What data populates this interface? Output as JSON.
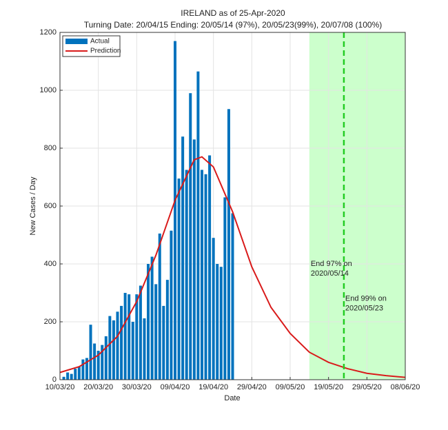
{
  "chart_data": {
    "type": "bar",
    "title": "IRELAND as of 25-Apr-2020",
    "subtitle": "Turning Date: 20/04/15  Ending: 20/05/14 (97%), 20/05/23(99%), 20/07/08 (100%)",
    "x_label": "Date",
    "y_label": "New Cases / Day",
    "xlim": [
      "2020-03-10",
      "2020-06-08"
    ],
    "xticks": [
      {
        "value": "2020-03-10",
        "label": "10/03/20"
      },
      {
        "value": "2020-03-20",
        "label": "20/03/20"
      },
      {
        "value": "2020-03-30",
        "label": "30/03/20"
      },
      {
        "value": "2020-04-09",
        "label": "09/04/20"
      },
      {
        "value": "2020-04-19",
        "label": "19/04/20"
      },
      {
        "value": "2020-04-29",
        "label": "29/04/20"
      },
      {
        "value": "2020-05-09",
        "label": "09/05/20"
      },
      {
        "value": "2020-05-19",
        "label": "19/05/20"
      },
      {
        "value": "2020-05-29",
        "label": "29/05/20"
      },
      {
        "value": "2020-06-08",
        "label": "08/06/20"
      }
    ],
    "ylim": [
      0,
      1200
    ],
    "yticks": [
      0,
      200,
      400,
      600,
      800,
      1000,
      1200
    ],
    "grid": true,
    "legend": "northwest",
    "shaded_x": [
      "2020-05-14",
      "2020-06-08"
    ],
    "shade_color": "#ccffcc",
    "vline_x": "2020-05-23",
    "vline_color": "#22cc22",
    "annotations": [
      {
        "text": [
          "End 97% on",
          "2020/05/14"
        ],
        "x": "2020-05-14",
        "y": 400
      },
      {
        "text": [
          "End 99% on",
          "2020/05/23"
        ],
        "x": "2020-05-23",
        "y": 280
      }
    ],
    "series": [
      {
        "name": "Actual",
        "type": "bar",
        "color": "#0072bd",
        "x": [
          "2020-03-11",
          "2020-03-12",
          "2020-03-13",
          "2020-03-14",
          "2020-03-15",
          "2020-03-16",
          "2020-03-17",
          "2020-03-18",
          "2020-03-19",
          "2020-03-20",
          "2020-03-21",
          "2020-03-22",
          "2020-03-23",
          "2020-03-24",
          "2020-03-25",
          "2020-03-26",
          "2020-03-27",
          "2020-03-28",
          "2020-03-29",
          "2020-03-30",
          "2020-03-31",
          "2020-04-01",
          "2020-04-02",
          "2020-04-03",
          "2020-04-04",
          "2020-04-05",
          "2020-04-06",
          "2020-04-07",
          "2020-04-08",
          "2020-04-09",
          "2020-04-10",
          "2020-04-11",
          "2020-04-12",
          "2020-04-13",
          "2020-04-14",
          "2020-04-15",
          "2020-04-16",
          "2020-04-17",
          "2020-04-18",
          "2020-04-19",
          "2020-04-20",
          "2020-04-21",
          "2020-04-22",
          "2020-04-23",
          "2020-04-24"
        ],
        "values": [
          10,
          25,
          20,
          38,
          45,
          70,
          75,
          190,
          125,
          100,
          120,
          150,
          220,
          205,
          235,
          255,
          300,
          295,
          200,
          295,
          325,
          212,
          400,
          425,
          330,
          505,
          255,
          345,
          515,
          1170,
          695,
          840,
          725,
          990,
          830,
          1065,
          725,
          710,
          775,
          490,
          400,
          390,
          630,
          935,
          575
        ]
      },
      {
        "name": "Prediction",
        "type": "line",
        "color": "#d91a1a",
        "x": [
          "2020-03-10",
          "2020-03-15",
          "2020-03-20",
          "2020-03-25",
          "2020-03-30",
          "2020-04-04",
          "2020-04-09",
          "2020-04-14",
          "2020-04-16",
          "2020-04-19",
          "2020-04-24",
          "2020-04-29",
          "2020-05-04",
          "2020-05-09",
          "2020-05-14",
          "2020-05-19",
          "2020-05-24",
          "2020-05-29",
          "2020-06-03",
          "2020-06-08"
        ],
        "values": [
          25,
          45,
          85,
          150,
          270,
          430,
          620,
          760,
          770,
          735,
          580,
          390,
          250,
          160,
          95,
          60,
          38,
          22,
          14,
          8
        ]
      }
    ]
  }
}
